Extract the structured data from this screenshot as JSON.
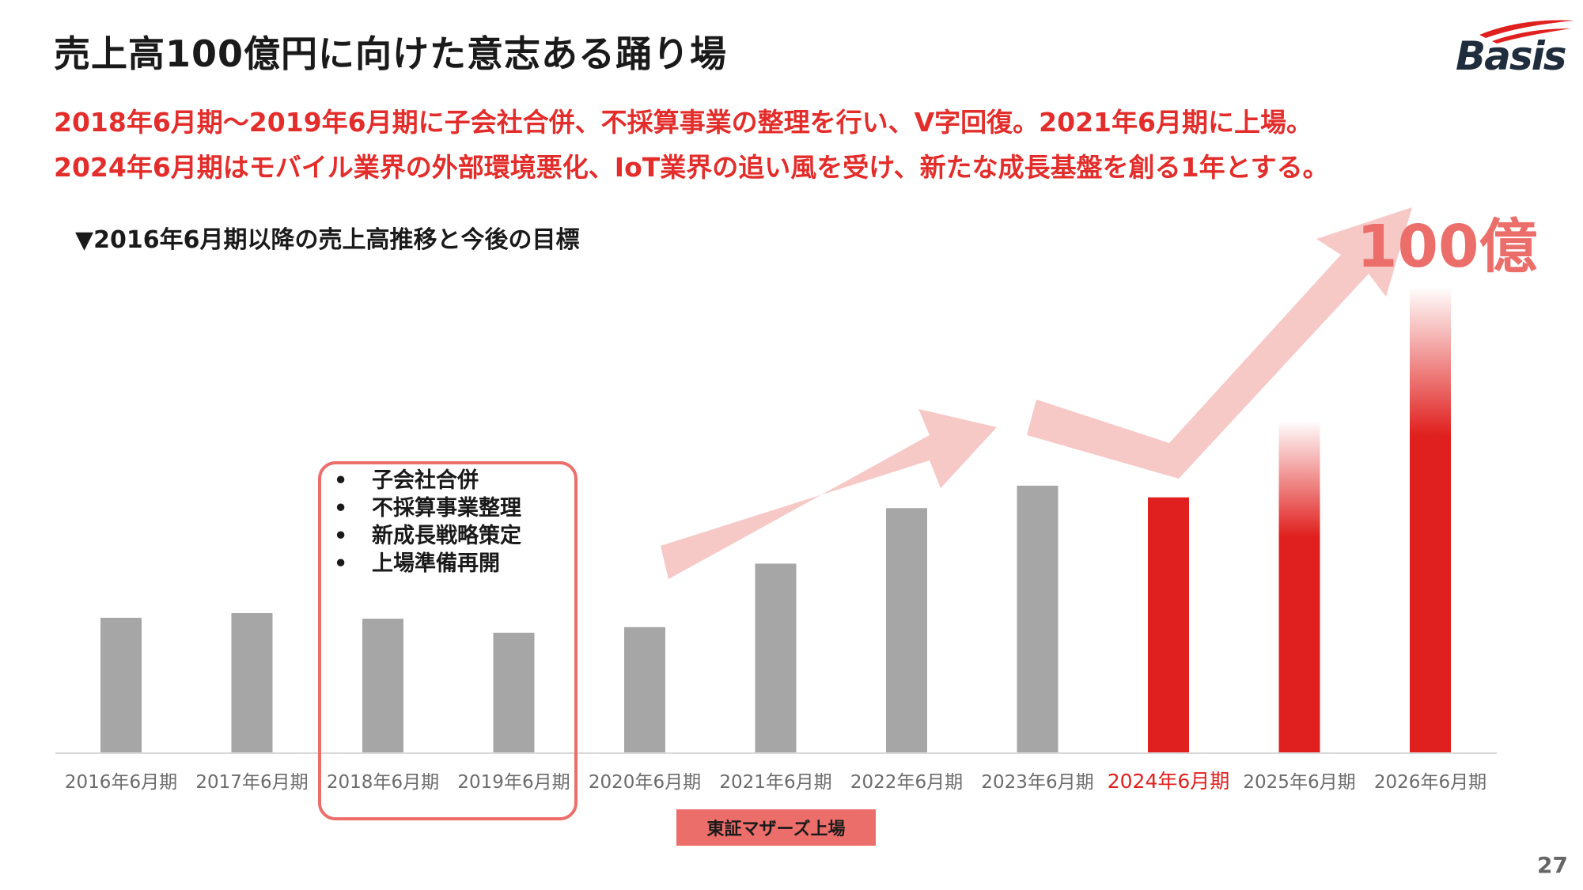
{
  "slide": {
    "title": "売上高100億円に向けた意志ある踊り場",
    "subtitle_line1": "2018年6月期～2019年6月期に子会社合併、不採算事業の整理を行い、V字回復。2021年6月期に上場。",
    "subtitle_line2": "2024年6月期はモバイル業界の外部環境悪化、IoT業界の追い風を受け、新たな成長基盤を創る1年とする。",
    "chart_heading": "▼2016年6月期以降の売上高推移と今後の目標",
    "target_label": "100億",
    "page_number": "27",
    "logo_text": "Basis",
    "listing_badge": "東証マザーズ上場",
    "callout_items": [
      "子会社合併",
      "不採算事業整理",
      "新成長戦略策定",
      "上場準備再開"
    ],
    "bullet": "•"
  },
  "colors": {
    "bar_past": "#a6a6a6",
    "bar_current": "#e0201e",
    "highlight_label": "#e0201e",
    "arrow": "#f6c8c6",
    "accent": "#ec6e6a",
    "subtitle": "#e32d2b"
  },
  "chart_data": {
    "type": "bar",
    "categories": [
      "2016年6月期",
      "2017年6月期",
      "2018年6月期",
      "2019年6月期",
      "2020年6月期",
      "2021年6月期",
      "2022年6月期",
      "2023年6月期",
      "2024年6月期",
      "2025年6月期",
      "2026年6月期"
    ],
    "values": [
      29,
      30,
      28.8,
      25.8,
      27,
      40.6,
      52.5,
      57.3,
      54.8,
      71.3,
      100
    ],
    "bar_styles": [
      "past",
      "past",
      "past",
      "past",
      "past",
      "past",
      "past",
      "past",
      "current",
      "target",
      "target"
    ],
    "highlight_category": "2024年6月期",
    "ylim": [
      0,
      100
    ],
    "grid": false,
    "legend": "none"
  }
}
